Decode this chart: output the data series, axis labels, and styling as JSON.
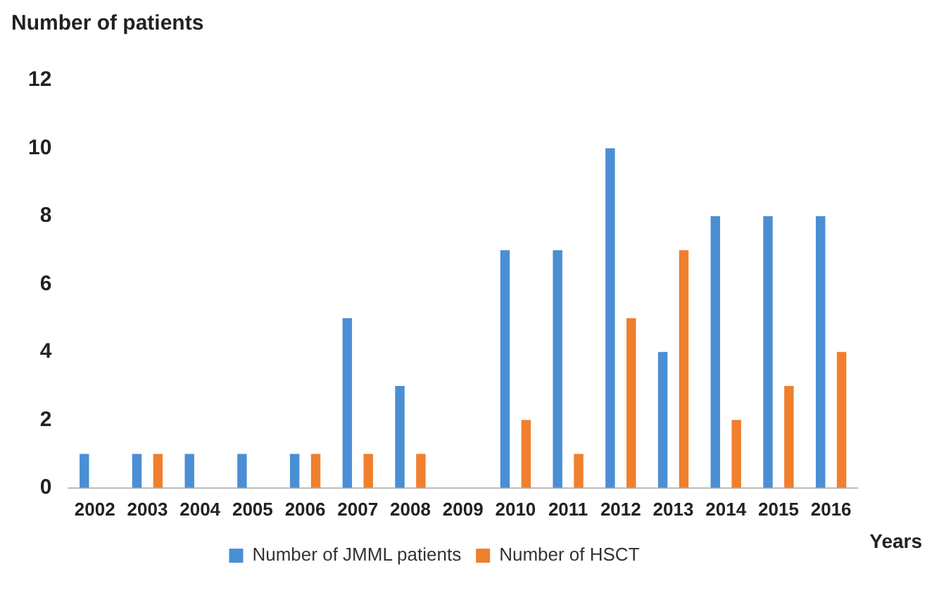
{
  "chart_data": {
    "type": "bar",
    "ylabel": "Number of patients",
    "xlabel": "Years",
    "categories": [
      "2002",
      "2003",
      "2004",
      "2005",
      "2006",
      "2007",
      "2008",
      "2009",
      "2010",
      "2011",
      "2012",
      "2013",
      "2014",
      "2015",
      "2016"
    ],
    "series": [
      {
        "name": "Number of JMML patients",
        "color": "#4a8fd4",
        "values": [
          1,
          1,
          1,
          1,
          1,
          5,
          3,
          0,
          7,
          7,
          10,
          4,
          8,
          8,
          8
        ]
      },
      {
        "name": "Number of HSCT",
        "color": "#f07f2e",
        "values": [
          0,
          1,
          0,
          0,
          1,
          1,
          1,
          0,
          2,
          1,
          5,
          7,
          2,
          3,
          4
        ]
      }
    ],
    "ylim": [
      0,
      12
    ],
    "yticks": [
      0,
      2,
      4,
      6,
      8,
      10,
      12
    ],
    "grid": false,
    "legend": "bottom"
  }
}
